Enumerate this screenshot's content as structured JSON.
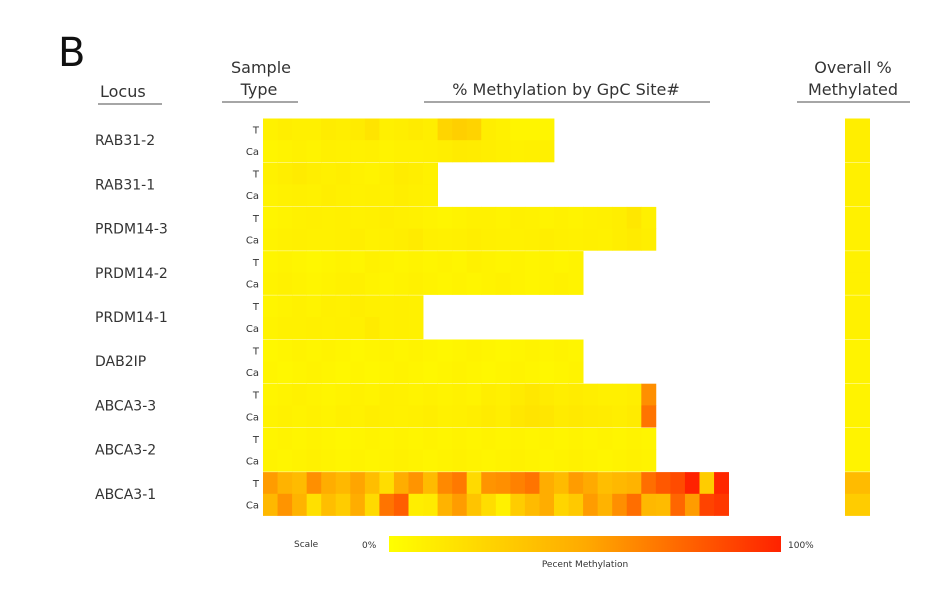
{
  "panel_label": "B",
  "headers": {
    "locus": "Locus",
    "sample_type": [
      "Sample",
      "Type"
    ],
    "methylation_by_site": "% Methylation by GpC Site#",
    "overall": [
      "Overall  %",
      "Methylated"
    ]
  },
  "scale": {
    "label": "Scale",
    "min_label": "0%",
    "max_label": "100%",
    "caption": "Pecent Methylation",
    "colors": {
      "low": "#ffff00",
      "mid": "#ffaa00",
      "high": "#ff2200"
    }
  },
  "chart_data": {
    "type": "heatmap",
    "title": "",
    "xlabel": "% Methylation by GpC Site#",
    "ylabel": "Locus",
    "value_range": [
      0,
      100
    ],
    "legend": "bottom",
    "overall_label": "Overall  % Methylated",
    "loci": [
      {
        "name": "RAB31-2",
        "overall": [
          10,
          10
        ],
        "T": [
          8,
          10,
          9,
          9,
          11,
          10,
          12,
          16,
          9,
          10,
          12,
          10,
          25,
          28,
          26,
          10,
          8,
          6,
          6,
          6
        ],
        "Ca": [
          6,
          7,
          8,
          7,
          9,
          8,
          8,
          9,
          7,
          8,
          8,
          9,
          10,
          12,
          11,
          10,
          9,
          8,
          9,
          9
        ]
      },
      {
        "name": "RAB31-1",
        "overall": [
          9,
          9
        ],
        "T": [
          8,
          10,
          12,
          10,
          9,
          10,
          8,
          7,
          9,
          11,
          10,
          8
        ],
        "Ca": [
          7,
          8,
          9,
          8,
          10,
          9,
          8,
          9,
          8,
          10,
          9,
          8
        ]
      },
      {
        "name": "PRDM14-3",
        "overall": [
          8,
          8
        ],
        "T": [
          6,
          7,
          8,
          9,
          8,
          9,
          8,
          9,
          10,
          9,
          8,
          7,
          6,
          7,
          8,
          8,
          7,
          9,
          8,
          7,
          8,
          7,
          8,
          9,
          10,
          14,
          9
        ],
        "Ca": [
          7,
          8,
          9,
          8,
          8,
          9,
          10,
          8,
          9,
          10,
          12,
          9,
          8,
          9,
          10,
          9,
          8,
          8,
          9,
          10,
          9,
          8,
          9,
          8,
          10,
          12,
          10
        ]
      },
      {
        "name": "PRDM14-2",
        "overall": [
          8,
          8
        ],
        "T": [
          6,
          7,
          6,
          5,
          6,
          7,
          6,
          8,
          7,
          6,
          7,
          6,
          7,
          6,
          8,
          7,
          6,
          7,
          6,
          7,
          6,
          7
        ],
        "Ca": [
          7,
          8,
          7,
          6,
          7,
          8,
          9,
          7,
          6,
          7,
          8,
          7,
          6,
          7,
          6,
          7,
          8,
          7,
          6,
          7,
          8,
          7
        ]
      },
      {
        "name": "PRDM14-1",
        "overall": [
          8,
          8
        ],
        "T": [
          6,
          7,
          8,
          7,
          9,
          8,
          10,
          9,
          8,
          9,
          8
        ],
        "Ca": [
          7,
          8,
          8,
          9,
          8,
          9,
          9,
          12,
          8,
          9,
          8
        ]
      },
      {
        "name": "DAB2IP",
        "overall": [
          7,
          7
        ],
        "T": [
          5,
          6,
          7,
          6,
          7,
          6,
          5,
          6,
          7,
          6,
          7,
          6,
          5,
          6,
          7,
          6,
          5,
          6,
          7,
          6,
          7,
          6
        ],
        "Ca": [
          6,
          5,
          6,
          7,
          6,
          5,
          6,
          5,
          6,
          7,
          6,
          5,
          6,
          7,
          6,
          5,
          6,
          7,
          6,
          5,
          6,
          7
        ]
      },
      {
        "name": "ABCA3-3",
        "overall": [
          7,
          7
        ],
        "T": [
          6,
          7,
          8,
          7,
          6,
          7,
          8,
          7,
          9,
          8,
          7,
          8,
          7,
          8,
          7,
          10,
          9,
          12,
          14,
          12,
          10,
          11,
          10,
          9,
          9,
          10,
          60
        ],
        "Ca": [
          7,
          8,
          7,
          8,
          7,
          9,
          8,
          10,
          9,
          8,
          9,
          10,
          8,
          9,
          10,
          12,
          10,
          14,
          16,
          15,
          12,
          13,
          12,
          11,
          10,
          12,
          70
        ]
      },
      {
        "name": "ABCA3-2",
        "overall": [
          7,
          7
        ],
        "T": [
          6,
          7,
          6,
          7,
          6,
          5,
          6,
          7,
          6,
          7,
          6,
          7,
          6,
          7,
          6,
          7,
          6,
          7,
          6,
          7,
          6,
          7,
          6,
          7,
          6,
          7,
          6
        ],
        "Ca": [
          7,
          6,
          7,
          8,
          7,
          6,
          7,
          6,
          7,
          8,
          7,
          6,
          7,
          8,
          7,
          6,
          7,
          8,
          7,
          6,
          7,
          8,
          7,
          6,
          7,
          8,
          7
        ]
      },
      {
        "name": "ABCA3-1",
        "overall": [
          40,
          30
        ],
        "T": [
          55,
          45,
          40,
          60,
          48,
          42,
          52,
          38,
          20,
          48,
          58,
          40,
          62,
          68,
          22,
          58,
          60,
          65,
          70,
          48,
          40,
          55,
          50,
          38,
          42,
          45,
          72,
          80,
          85,
          100,
          30,
          98
        ],
        "Ca": [
          42,
          58,
          45,
          18,
          38,
          30,
          48,
          22,
          70,
          78,
          10,
          12,
          45,
          55,
          35,
          20,
          8,
          30,
          40,
          48,
          25,
          32,
          55,
          45,
          60,
          72,
          42,
          40,
          75,
          55,
          88,
          92
        ]
      }
    ]
  }
}
